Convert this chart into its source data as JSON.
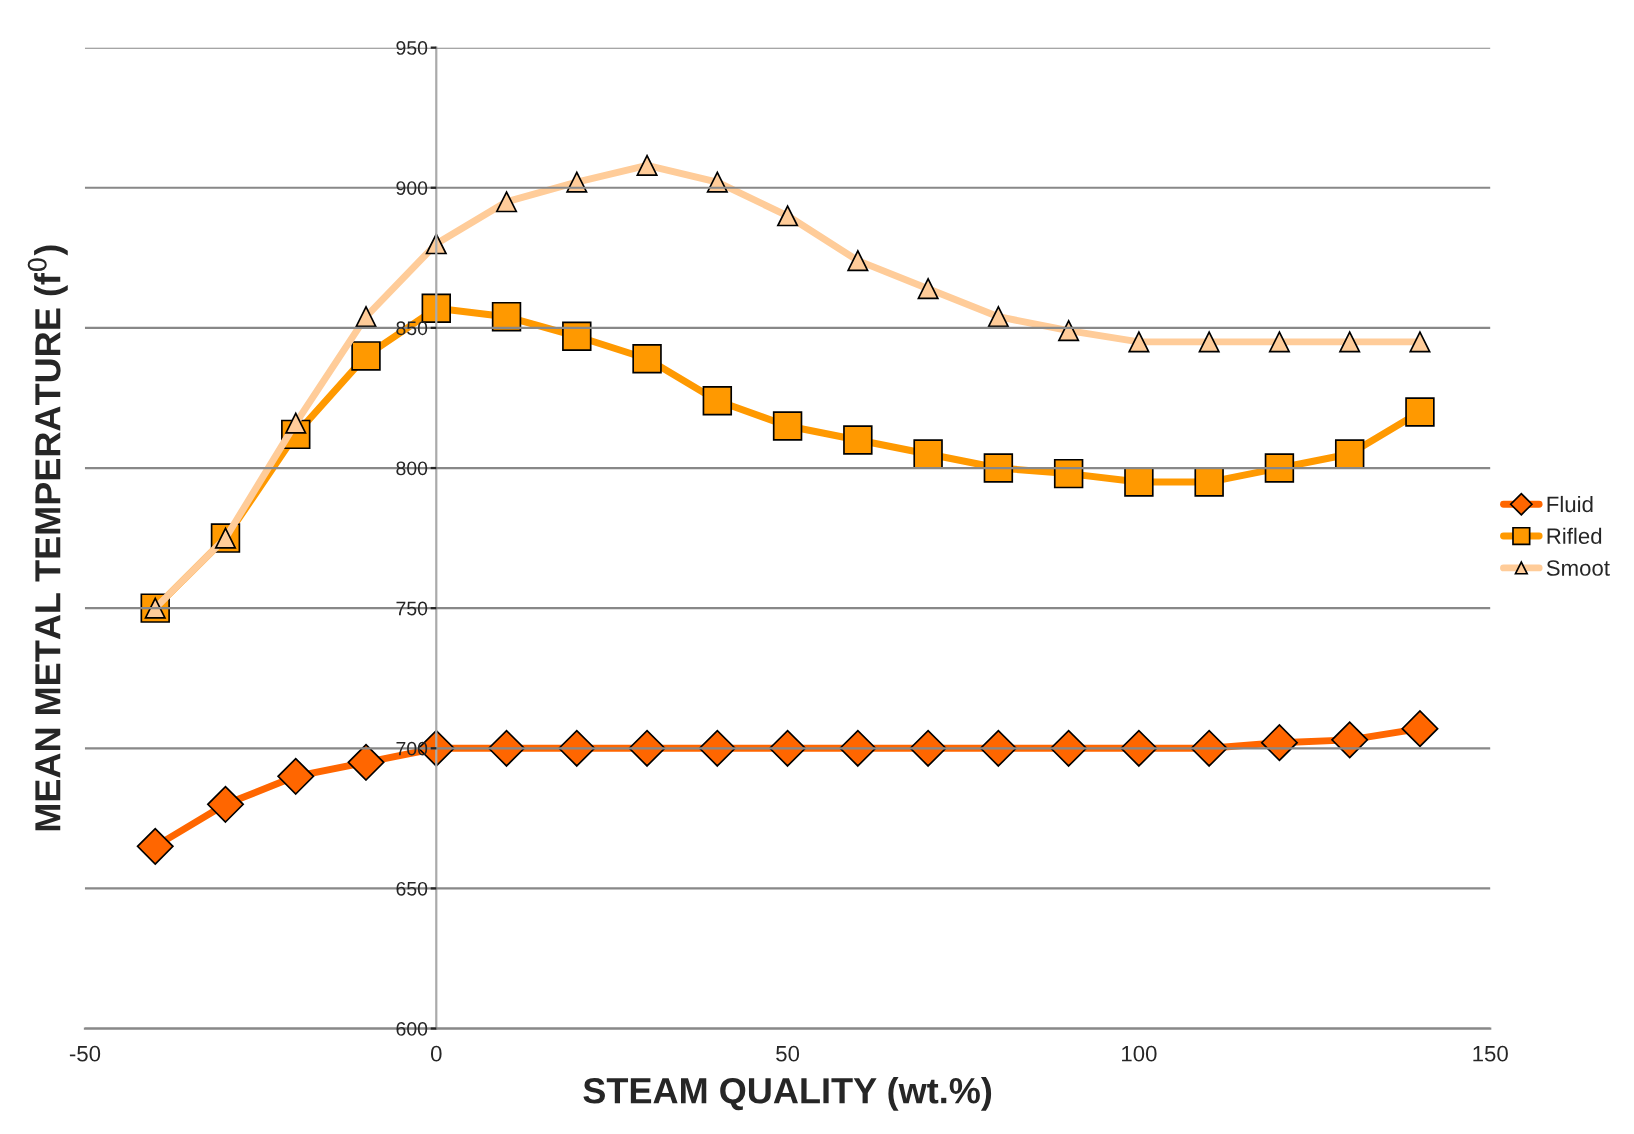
{
  "chart_data": {
    "type": "line",
    "xlabel": "STEAM QUALITY (wt.%)",
    "ylabel": "MEAN METAL TEMPERATURE (f$^{0}$)",
    "x": [
      -40,
      -30,
      -20,
      -10,
      0,
      10,
      20,
      30,
      40,
      50,
      60,
      70,
      80,
      90,
      100,
      110,
      120,
      130,
      140
    ],
    "series": [
      {
        "name": "Fluid",
        "color": "#ff6600",
        "marker": "diamond",
        "values": [
          665,
          680,
          690,
          695,
          700,
          700,
          700,
          700,
          700,
          700,
          700,
          700,
          700,
          700,
          700,
          700,
          702,
          703,
          707
        ]
      },
      {
        "name": "Rifled",
        "color": "#ff9900",
        "marker": "square",
        "values": [
          750,
          775,
          812,
          840,
          857,
          854,
          847,
          839,
          824,
          815,
          810,
          805,
          800,
          798,
          795,
          795,
          800,
          805,
          820
        ]
      },
      {
        "name": "Smoot",
        "color": "#ffcc99",
        "marker": "triangle",
        "values": [
          750,
          775,
          816,
          854,
          880,
          895,
          902,
          908,
          902,
          890,
          874,
          864,
          854,
          849,
          845,
          845,
          845,
          845,
          845
        ]
      }
    ],
    "xlim": [
      -50,
      150
    ],
    "xticks": [
      -50,
      0,
      50,
      100,
      150
    ],
    "ylim": [
      600,
      950
    ],
    "yticks": [
      600,
      650,
      700,
      750,
      800,
      850,
      900,
      950
    ],
    "grid": "y",
    "legend": "right",
    "line_style": "solid"
  }
}
